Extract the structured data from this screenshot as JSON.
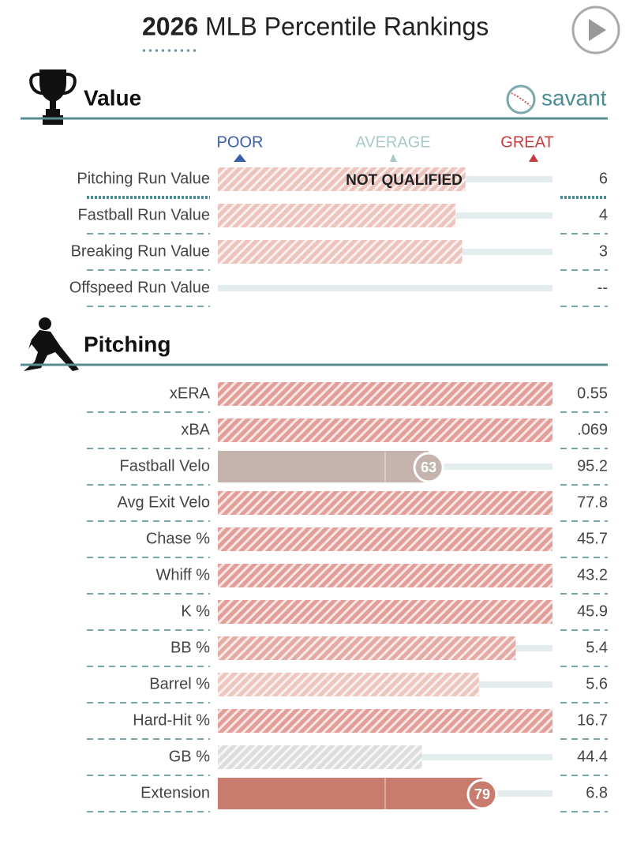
{
  "header": {
    "title_year": "2026",
    "title_rest": "MLB Percentile Rankings",
    "brand": "savant"
  },
  "scale": {
    "poor": "POOR",
    "average": "AVERAGE",
    "great": "GREAT",
    "xlim": [
      0,
      100
    ]
  },
  "not_qualified": "NOT QUALIFIED",
  "sections": [
    {
      "title": "Value",
      "rows": [
        {
          "label": "Pitching Run Value",
          "stat": "6",
          "percentile": 74,
          "style": "hatched",
          "color": "#edc4bd"
        },
        {
          "label": "Fastball Run Value",
          "stat": "4",
          "percentile": 71,
          "style": "hatched",
          "color": "#edc4bd"
        },
        {
          "label": "Breaking Run Value",
          "stat": "3",
          "percentile": 73,
          "style": "hatched",
          "color": "#edc4bd"
        },
        {
          "label": "Offspeed Run Value",
          "stat": "--",
          "percentile": null,
          "style": "hatched",
          "color": "#edc4bd"
        }
      ]
    },
    {
      "title": "Pitching",
      "rows": [
        {
          "label": "xERA",
          "stat": "0.55",
          "percentile": 100,
          "style": "hatched",
          "color": "#e29f99"
        },
        {
          "label": "xBA",
          "stat": ".069",
          "percentile": 100,
          "style": "hatched",
          "color": "#e29f99"
        },
        {
          "label": "Fastball Velo",
          "stat": "95.2",
          "percentile": 63,
          "style": "solid",
          "color": "#c4b4ad"
        },
        {
          "label": "Avg Exit Velo",
          "stat": "77.8",
          "percentile": 100,
          "style": "hatched",
          "color": "#e29f99"
        },
        {
          "label": "Chase %",
          "stat": "45.7",
          "percentile": 100,
          "style": "hatched",
          "color": "#e29f99"
        },
        {
          "label": "Whiff %",
          "stat": "43.2",
          "percentile": 100,
          "style": "hatched",
          "color": "#e29f99"
        },
        {
          "label": "K %",
          "stat": "45.9",
          "percentile": 100,
          "style": "hatched",
          "color": "#e29f99"
        },
        {
          "label": "BB %",
          "stat": "5.4",
          "percentile": 89,
          "style": "hatched",
          "color": "#e4aaa4"
        },
        {
          "label": "Barrel %",
          "stat": "5.6",
          "percentile": 78,
          "style": "hatched",
          "color": "#edc6c0"
        },
        {
          "label": "Hard-Hit %",
          "stat": "16.7",
          "percentile": 100,
          "style": "hatched",
          "color": "#e29f99"
        },
        {
          "label": "GB %",
          "stat": "44.4",
          "percentile": 61,
          "style": "hatched",
          "color": "#dddddd"
        },
        {
          "label": "Extension",
          "stat": "6.8",
          "percentile": 79,
          "style": "solid",
          "color": "#c97b6d"
        }
      ]
    }
  ]
}
